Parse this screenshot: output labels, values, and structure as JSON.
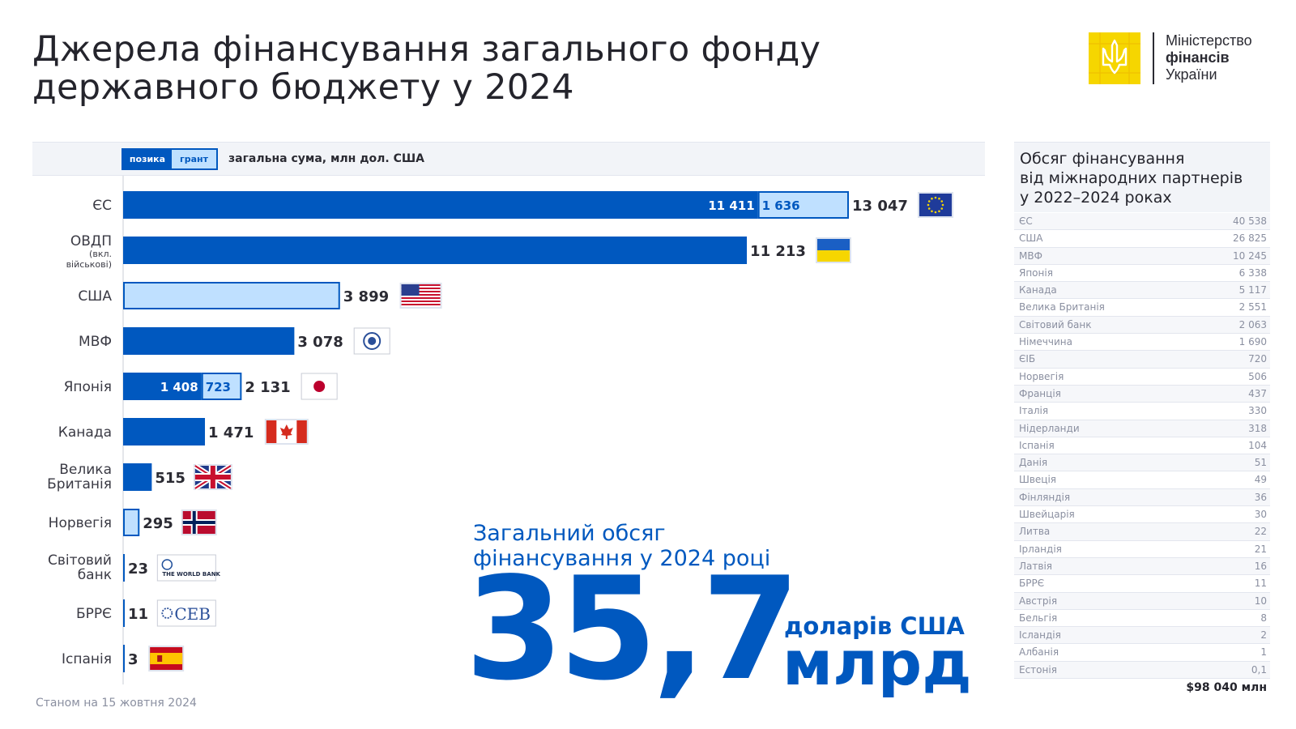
{
  "title": {
    "line1": "Джерела фінансування загального фонду",
    "line2": "державного бюджету у 2024"
  },
  "logo": {
    "icon": "trident-emblem-icon",
    "line1": "Міністерство",
    "line2": "фінансів",
    "line3": "України",
    "color": "#f6d600"
  },
  "legend": {
    "loan": "позика",
    "grant": "грант",
    "label": "загальна сума, млн дол. США"
  },
  "colors": {
    "loan": "#0058bf",
    "grant": "#bfe0ff",
    "text": "#2b2b33"
  },
  "chart_data": {
    "type": "bar",
    "orientation": "horizontal",
    "stacked": true,
    "unit": "млн дол. США",
    "series": [
      {
        "name": "позика",
        "key": "loan"
      },
      {
        "name": "грант",
        "key": "grant"
      }
    ],
    "bars": [
      {
        "label": "ЄС",
        "loan": 11411,
        "grant": 1636,
        "total": 13047,
        "loan_label": "11 411",
        "grant_label": "1 636",
        "total_label": "13 047",
        "flag": "eu-flag-icon"
      },
      {
        "label": "ОВДП",
        "sublabel1": "(вкл.",
        "sublabel2": "військові)",
        "loan": 11213,
        "grant": 0,
        "total": 11213,
        "total_label": "11 213",
        "flag": "ukraine-flag-icon"
      },
      {
        "label": "США",
        "loan": 0,
        "grant": 3899,
        "total": 3899,
        "total_label": "3 899",
        "flag": "usa-flag-icon"
      },
      {
        "label": "МВФ",
        "loan": 3078,
        "grant": 0,
        "total": 3078,
        "total_label": "3 078",
        "flag": "imf-logo-icon"
      },
      {
        "label": "Японія",
        "loan": 1408,
        "grant": 723,
        "total": 2131,
        "loan_label": "1 408",
        "grant_label": "723",
        "total_label": "2 131",
        "flag": "japan-flag-icon"
      },
      {
        "label": "Канада",
        "loan": 1471,
        "grant": 0,
        "total": 1471,
        "total_label": "1 471",
        "flag": "canada-flag-icon"
      },
      {
        "label": "Велика",
        "label2": "Британія",
        "loan": 515,
        "grant": 0,
        "total": 515,
        "total_label": "515",
        "flag": "uk-flag-icon"
      },
      {
        "label": "Норвегія",
        "loan": 0,
        "grant": 295,
        "total": 295,
        "total_label": "295",
        "flag": "norway-flag-icon"
      },
      {
        "label": "Світовий",
        "label2": "банк",
        "loan": 23,
        "grant": 0,
        "total": 23,
        "total_label": "23",
        "flag": "world-bank-logo-icon",
        "flag_text": "THE WORLD BANK"
      },
      {
        "label": "БРРЄ",
        "loan": 11,
        "grant": 0,
        "total": 11,
        "total_label": "11",
        "flag": "ceb-logo-icon",
        "flag_text": "CEB"
      },
      {
        "label": "Іспанія",
        "loan": 3,
        "grant": 0,
        "total": 3,
        "total_label": "3",
        "flag": "spain-flag-icon"
      }
    ]
  },
  "as_of": "Станом на 15 жовтня 2024",
  "summary": {
    "caption1": "Загальний обсяг",
    "caption2": "фінансування у 2024 році",
    "number": "35,7",
    "currency": "доларів США",
    "unit": "млрд"
  },
  "sidebar": {
    "title1": "Обсяг фінансування",
    "title2": "від міжнародних партнерів",
    "title3": "у 2022–2024 роках",
    "rows": [
      {
        "name": "ЄС",
        "value": "40 538"
      },
      {
        "name": "США",
        "value": "26 825"
      },
      {
        "name": "МВФ",
        "value": "10 245"
      },
      {
        "name": "Японія",
        "value": "6 338"
      },
      {
        "name": "Канада",
        "value": "5 117"
      },
      {
        "name": "Велика Британія",
        "value": "2 551"
      },
      {
        "name": "Світовий банк",
        "value": "2 063"
      },
      {
        "name": "Німеччина",
        "value": "1 690"
      },
      {
        "name": "ЄІБ",
        "value": "720"
      },
      {
        "name": "Норвегія",
        "value": "506"
      },
      {
        "name": "Франція",
        "value": "437"
      },
      {
        "name": "Італія",
        "value": "330"
      },
      {
        "name": "Нідерланди",
        "value": "318"
      },
      {
        "name": "Іспанія",
        "value": "104"
      },
      {
        "name": "Данія",
        "value": "51"
      },
      {
        "name": "Швеція",
        "value": "49"
      },
      {
        "name": "Фінляндія",
        "value": "36"
      },
      {
        "name": "Швейцарія",
        "value": "30"
      },
      {
        "name": "Литва",
        "value": "22"
      },
      {
        "name": "Ірландія",
        "value": "21"
      },
      {
        "name": "Латвія",
        "value": "16"
      },
      {
        "name": "БРРЄ",
        "value": "11"
      },
      {
        "name": "Австрія",
        "value": "10"
      },
      {
        "name": "Бельгія",
        "value": "8"
      },
      {
        "name": "Ісландія",
        "value": "2"
      },
      {
        "name": "Албанія",
        "value": "1"
      },
      {
        "name": "Естонія",
        "value": "0,1"
      }
    ],
    "total": "$98 040 млн"
  }
}
